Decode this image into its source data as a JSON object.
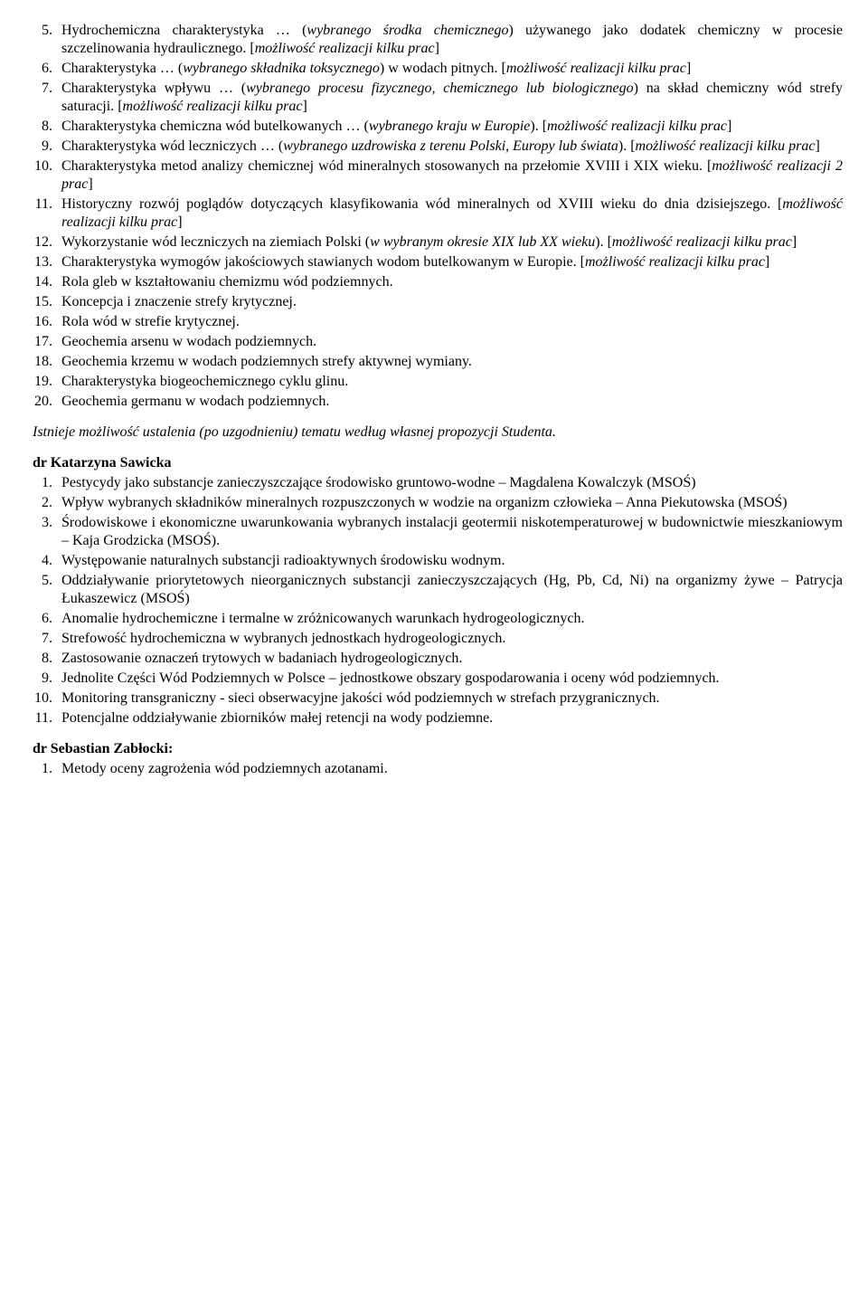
{
  "top_list_start": 5,
  "top_list": [
    {
      "text": "Hydrochemiczna charakterystyka … (",
      "em1": "wybranego środka chemicznego",
      "mid1": ") używanego jako dodatek chemiczny w procesie szczelinowania hydraulicznego. [",
      "em2": "możliwość realizacji kilku prac",
      "end": "]"
    },
    {
      "text": "Charakterystyka … (",
      "em1": "wybranego składnika toksycznego",
      "mid1": ") w wodach pitnych. [",
      "em2": "możliwość realizacji kilku prac",
      "end": "]"
    },
    {
      "text": "Charakterystyka wpływu … (",
      "em1": "wybranego procesu fizycznego, chemicznego lub biologicznego",
      "mid1": ") na skład chemiczny wód strefy saturacji. [",
      "em2": "możliwość realizacji kilku prac",
      "end": "]"
    },
    {
      "text": "Charakterystyka chemiczna wód butelkowanych … (",
      "em1": "wybranego kraju w Europie",
      "mid1": "). [",
      "em2": "możliwość realizacji kilku prac",
      "end": "]"
    },
    {
      "text": "Charakterystyka wód leczniczych … (",
      "em1": "wybranego uzdrowiska z terenu Polski, Europy lub świata",
      "mid1": "). [",
      "em2": "możliwość realizacji kilku prac",
      "end": "]"
    },
    {
      "text": "Charakterystyka metod analizy chemicznej wód mineralnych stosowanych na przełomie XVIII i XIX wieku. [",
      "em1": "możliwość realizacji 2 prac",
      "mid1": "]",
      "em2": "",
      "end": ""
    },
    {
      "text": "Historyczny rozwój poglądów dotyczących klasyfikowania wód mineralnych od XVIII wieku do dnia dzisiejszego. [",
      "em1": "możliwość realizacji kilku prac",
      "mid1": "]",
      "em2": "",
      "end": ""
    },
    {
      "text": "Wykorzystanie wód leczniczych na ziemiach Polski (",
      "em1": "w wybranym okresie XIX lub XX wieku",
      "mid1": "). [",
      "em2": "możliwość realizacji kilku prac",
      "end": "]"
    },
    {
      "text": "Charakterystyka wymogów jakościowych stawianych wodom butelkowanym w Europie. [",
      "em1": "możliwość realizacji kilku prac",
      "mid1": "]",
      "em2": "",
      "end": ""
    },
    {
      "text": "Rola gleb w kształtowaniu chemizmu wód podziemnych.",
      "em1": "",
      "mid1": "",
      "em2": "",
      "end": ""
    },
    {
      "text": "Koncepcja i znaczenie strefy krytycznej.",
      "em1": "",
      "mid1": "",
      "em2": "",
      "end": ""
    },
    {
      "text": "Rola wód w strefie krytycznej.",
      "em1": "",
      "mid1": "",
      "em2": "",
      "end": ""
    },
    {
      "text": "Geochemia arsenu w wodach podziemnych.",
      "em1": "",
      "mid1": "",
      "em2": "",
      "end": ""
    },
    {
      "text": "Geochemia krzemu w wodach podziemnych strefy aktywnej wymiany.",
      "em1": "",
      "mid1": "",
      "em2": "",
      "end": ""
    },
    {
      "text": "Charakterystyka biogeochemicznego cyklu glinu.",
      "em1": "",
      "mid1": "",
      "em2": "",
      "end": ""
    },
    {
      "text": "Geochemia germanu w wodach podziemnych.",
      "em1": "",
      "mid1": "",
      "em2": "",
      "end": ""
    }
  ],
  "note": "Istnieje możliwość ustalenia (po uzgodnieniu) tematu według własnej propozycji Studenta.",
  "section2_name": "dr Katarzyna Sawicka",
  "section2_list": [
    "Pestycydy jako substancje zanieczyszczające środowisko gruntowo-wodne – Magdalena Kowalczyk (MSOŚ)",
    "Wpływ wybranych składników mineralnych rozpuszczonych w wodzie na organizm człowieka – Anna Piekutowska (MSOŚ)",
    "Środowiskowe i ekonomiczne uwarunkowania wybranych instalacji geotermii niskotemperaturowej w budownictwie mieszkaniowym – Kaja Grodzicka (MSOŚ).",
    "Występowanie naturalnych substancji radioaktywnych środowisku wodnym.",
    "Oddziaływanie priorytetowych nieorganicznych substancji zanieczyszczających (Hg, Pb, Cd, Ni) na organizmy żywe – Patrycja Łukaszewicz (MSOŚ)",
    "Anomalie hydrochemiczne i termalne w zróżnicowanych warunkach hydrogeologicznych.",
    "Strefowość hydrochemiczna w wybranych jednostkach hydrogeologicznych.",
    "Zastosowanie oznaczeń trytowych w badaniach hydrogeologicznych.",
    "Jednolite Części Wód Podziemnych w Polsce – jednostkowe obszary gospodarowania i oceny wód podziemnych.",
    "Monitoring transgraniczny - sieci obserwacyjne jakości wód podziemnych w strefach przygranicznych.",
    "Potencjalne oddziaływanie zbiorników małej retencji na wody podziemne."
  ],
  "section3_name": "dr Sebastian Zabłocki:",
  "section3_list": [
    "Metody oceny zagrożenia wód podziemnych azotanami."
  ],
  "colors": {
    "text": "#000000",
    "background": "#ffffff"
  },
  "typography": {
    "font_family": "Times New Roman",
    "font_size_pt": 12,
    "line_height": 1.25
  }
}
